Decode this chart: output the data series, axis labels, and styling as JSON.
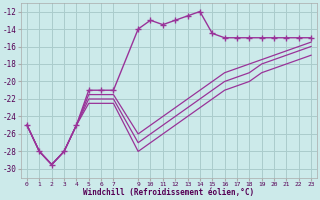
{
  "xlabel": "Windchill (Refroidissement éolien,°C)",
  "background_color": "#cceaea",
  "grid_color": "#aacccc",
  "line_color": "#993399",
  "series_wc_x": [
    0,
    1,
    2,
    3,
    4,
    5,
    6,
    7,
    9,
    10,
    11,
    12,
    13,
    14,
    15,
    16,
    17,
    18,
    19,
    20,
    21,
    22,
    23
  ],
  "series_wc_y": [
    -25,
    -28,
    -29.5,
    -28,
    -25,
    -21,
    -21,
    -21,
    -14,
    -13,
    -13.5,
    -13,
    -12.5,
    -12,
    -14.5,
    -15,
    -15,
    -15,
    -15,
    -15,
    -15,
    -15,
    -15
  ],
  "line1_x": [
    0,
    1,
    2,
    3,
    4,
    5,
    6,
    7,
    9,
    10,
    11,
    12,
    13,
    14,
    15,
    16,
    17,
    18,
    19,
    20,
    21,
    22,
    23
  ],
  "line1_y": [
    -25,
    -28,
    -29.5,
    -28,
    -25,
    -21.5,
    -21.5,
    -21.5,
    -26,
    -25,
    -24,
    -23,
    -22,
    -21,
    -20,
    -19,
    -18.5,
    -18,
    -17.5,
    -17,
    -16.5,
    -16,
    -15.5
  ],
  "line2_x": [
    0,
    1,
    2,
    3,
    4,
    5,
    6,
    7,
    9,
    10,
    11,
    12,
    13,
    14,
    15,
    16,
    17,
    18,
    19,
    20,
    21,
    22,
    23
  ],
  "line2_y": [
    -25,
    -28,
    -29.5,
    -28,
    -25,
    -22,
    -22,
    -22,
    -27,
    -26,
    -25,
    -24,
    -23,
    -22,
    -21,
    -20,
    -19.5,
    -19,
    -18,
    -17.5,
    -17,
    -16.5,
    -16
  ],
  "line3_x": [
    0,
    1,
    2,
    3,
    4,
    5,
    6,
    7,
    9,
    10,
    11,
    12,
    13,
    14,
    15,
    16,
    17,
    18,
    19,
    20,
    21,
    22,
    23
  ],
  "line3_y": [
    -25,
    -28,
    -29.5,
    -28,
    -25,
    -22.5,
    -22.5,
    -22.5,
    -28,
    -27,
    -26,
    -25,
    -24,
    -23,
    -22,
    -21,
    -20.5,
    -20,
    -19,
    -18.5,
    -18,
    -17.5,
    -17
  ],
  "ylim": [
    -31,
    -11
  ],
  "yticks": [
    -30,
    -28,
    -26,
    -24,
    -22,
    -20,
    -18,
    -16,
    -14,
    -12
  ],
  "xlim": [
    -0.5,
    23.5
  ],
  "xticks": [
    0,
    1,
    2,
    3,
    4,
    5,
    6,
    7,
    9,
    10,
    11,
    12,
    13,
    14,
    15,
    16,
    17,
    18,
    19,
    20,
    21,
    22,
    23
  ],
  "xlabels": [
    "0",
    "1",
    "2",
    "3",
    "4",
    "5",
    "6",
    "7",
    "9",
    "10",
    "11",
    "12",
    "13",
    "14",
    "15",
    "16",
    "17",
    "18",
    "19",
    "20",
    "21",
    "22",
    "23"
  ]
}
